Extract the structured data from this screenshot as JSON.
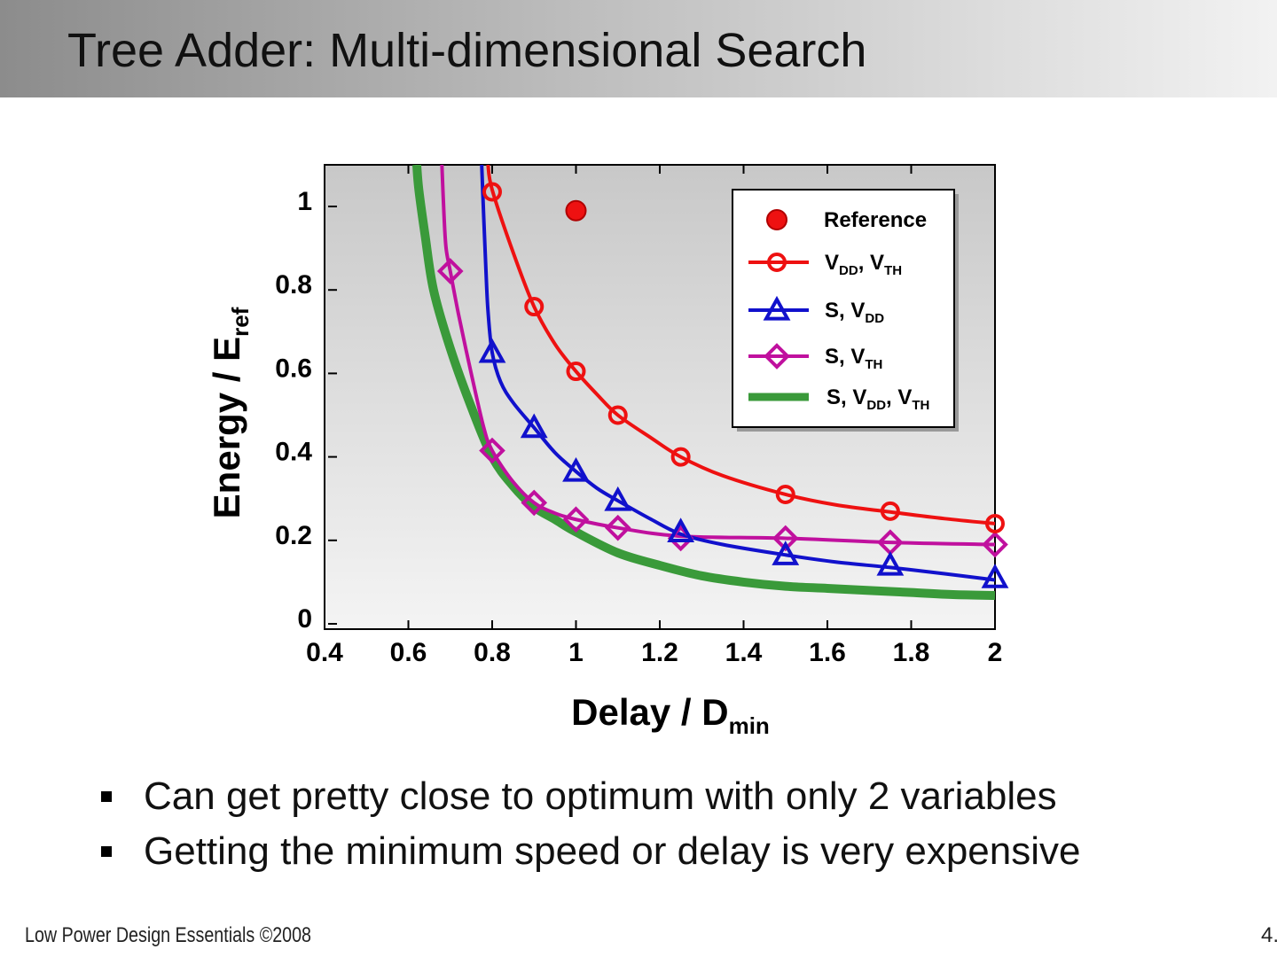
{
  "slide": {
    "title": "Tree Adder: Multi-dimensional Search",
    "bullets": [
      "Can get pretty close to optimum with only 2 variables",
      "Getting the minimum speed or delay is very expensive"
    ],
    "footer_left": "Low Power Design Essentials ©2008",
    "footer_right": "4."
  },
  "colors": {
    "red": "#ee1111",
    "blue": "#1111cc",
    "magenta": "#c0109e",
    "green": "#3a9a3a",
    "plot_bg_top": "#c8c8c8",
    "plot_bg_bottom": "#f4f4f4"
  },
  "chart_data": {
    "type": "line",
    "title": "",
    "xlabel": {
      "main": "Delay / D",
      "sub": "min"
    },
    "ylabel": {
      "main": "Energy / E",
      "sub": "ref"
    },
    "xlim": [
      0.4,
      2.0
    ],
    "ylim": [
      0,
      1.1
    ],
    "x_ticks": [
      0.4,
      0.6,
      0.8,
      1,
      1.2,
      1.4,
      1.6,
      1.8,
      2
    ],
    "x_tick_labels": [
      "0.4",
      "0.6",
      "0.8",
      "1",
      "1.2",
      "1.4",
      "1.6",
      "1.8",
      "2"
    ],
    "y_ticks": [
      0,
      0.2,
      0.4,
      0.6,
      0.8,
      1
    ],
    "y_tick_labels": [
      "0",
      "0.2",
      "0.4",
      "0.6",
      "0.8",
      "1"
    ],
    "grid": false,
    "legend_position": "top-right",
    "series": [
      {
        "name": "Reference",
        "label_parts": [
          [
            "Reference",
            false
          ]
        ],
        "color_key": "red",
        "marker": "dot",
        "line": false,
        "points": [
          [
            1.0,
            0.99
          ]
        ]
      },
      {
        "name": "VDD, VTH",
        "label_parts": [
          [
            "V",
            false
          ],
          [
            "DD",
            true
          ],
          [
            ", V",
            false
          ],
          [
            "TH",
            true
          ]
        ],
        "color_key": "red",
        "marker": "circle",
        "line": true,
        "curve": [
          [
            0.79,
            1.1
          ],
          [
            0.8,
            1.04
          ],
          [
            0.85,
            0.89
          ],
          [
            0.9,
            0.76
          ],
          [
            0.95,
            0.67
          ],
          [
            1.0,
            0.605
          ],
          [
            1.05,
            0.55
          ],
          [
            1.1,
            0.5
          ],
          [
            1.18,
            0.445
          ],
          [
            1.25,
            0.4
          ],
          [
            1.35,
            0.355
          ],
          [
            1.5,
            0.31
          ],
          [
            1.62,
            0.285
          ],
          [
            1.75,
            0.268
          ],
          [
            1.88,
            0.252
          ],
          [
            2.0,
            0.24
          ]
        ],
        "points": [
          [
            0.8,
            1.035
          ],
          [
            0.9,
            0.76
          ],
          [
            1.0,
            0.605
          ],
          [
            1.1,
            0.5
          ],
          [
            1.25,
            0.4
          ],
          [
            1.5,
            0.31
          ],
          [
            1.75,
            0.27
          ],
          [
            2.0,
            0.24
          ]
        ]
      },
      {
        "name": "S, VDD",
        "label_parts": [
          [
            "S, V",
            false
          ],
          [
            "DD",
            true
          ]
        ],
        "color_key": "blue",
        "marker": "triangle",
        "line": true,
        "curve": [
          [
            0.775,
            1.1
          ],
          [
            0.78,
            0.97
          ],
          [
            0.785,
            0.85
          ],
          [
            0.79,
            0.75
          ],
          [
            0.8,
            0.65
          ],
          [
            0.82,
            0.58
          ],
          [
            0.85,
            0.53
          ],
          [
            0.9,
            0.47
          ],
          [
            0.95,
            0.41
          ],
          [
            1.0,
            0.365
          ],
          [
            1.05,
            0.325
          ],
          [
            1.1,
            0.295
          ],
          [
            1.18,
            0.25
          ],
          [
            1.25,
            0.215
          ],
          [
            1.35,
            0.19
          ],
          [
            1.5,
            0.165
          ],
          [
            1.62,
            0.148
          ],
          [
            1.75,
            0.135
          ],
          [
            1.88,
            0.12
          ],
          [
            2.0,
            0.105
          ]
        ],
        "points": [
          [
            0.8,
            0.65
          ],
          [
            0.9,
            0.47
          ],
          [
            1.0,
            0.365
          ],
          [
            1.1,
            0.295
          ],
          [
            1.25,
            0.22
          ],
          [
            1.5,
            0.165
          ],
          [
            1.75,
            0.14
          ],
          [
            2.0,
            0.11
          ]
        ]
      },
      {
        "name": "S, VTH",
        "label_parts": [
          [
            "S, V",
            false
          ],
          [
            "TH",
            true
          ]
        ],
        "color_key": "magenta",
        "marker": "diamond",
        "line": true,
        "curve": [
          [
            0.68,
            1.1
          ],
          [
            0.685,
            0.98
          ],
          [
            0.69,
            0.9
          ],
          [
            0.7,
            0.845
          ],
          [
            0.72,
            0.74
          ],
          [
            0.75,
            0.6
          ],
          [
            0.78,
            0.47
          ],
          [
            0.8,
            0.415
          ],
          [
            0.85,
            0.34
          ],
          [
            0.9,
            0.29
          ],
          [
            0.95,
            0.265
          ],
          [
            1.0,
            0.25
          ],
          [
            1.1,
            0.23
          ],
          [
            1.25,
            0.21
          ],
          [
            1.5,
            0.205
          ],
          [
            1.75,
            0.195
          ],
          [
            2.0,
            0.19
          ]
        ],
        "points": [
          [
            0.7,
            0.845
          ],
          [
            0.8,
            0.415
          ],
          [
            0.9,
            0.29
          ],
          [
            1.0,
            0.25
          ],
          [
            1.1,
            0.23
          ],
          [
            1.25,
            0.205
          ],
          [
            1.5,
            0.205
          ],
          [
            1.75,
            0.195
          ],
          [
            2.0,
            0.19
          ]
        ]
      },
      {
        "name": "S, VDD, VTH",
        "label_parts": [
          [
            "S, V",
            false
          ],
          [
            "DD",
            true
          ],
          [
            ", V",
            false
          ],
          [
            "TH",
            true
          ]
        ],
        "color_key": "green",
        "marker": "none",
        "line": true,
        "thick": true,
        "curve": [
          [
            0.62,
            1.1
          ],
          [
            0.625,
            1.04
          ],
          [
            0.64,
            0.93
          ],
          [
            0.66,
            0.8
          ],
          [
            0.7,
            0.66
          ],
          [
            0.75,
            0.52
          ],
          [
            0.8,
            0.4
          ],
          [
            0.85,
            0.33
          ],
          [
            0.9,
            0.28
          ],
          [
            0.95,
            0.25
          ],
          [
            1.0,
            0.22
          ],
          [
            1.1,
            0.17
          ],
          [
            1.2,
            0.14
          ],
          [
            1.3,
            0.115
          ],
          [
            1.4,
            0.1
          ],
          [
            1.5,
            0.09
          ],
          [
            1.6,
            0.085
          ],
          [
            1.7,
            0.08
          ],
          [
            1.8,
            0.075
          ],
          [
            1.9,
            0.07
          ],
          [
            2.0,
            0.068
          ]
        ]
      }
    ]
  }
}
